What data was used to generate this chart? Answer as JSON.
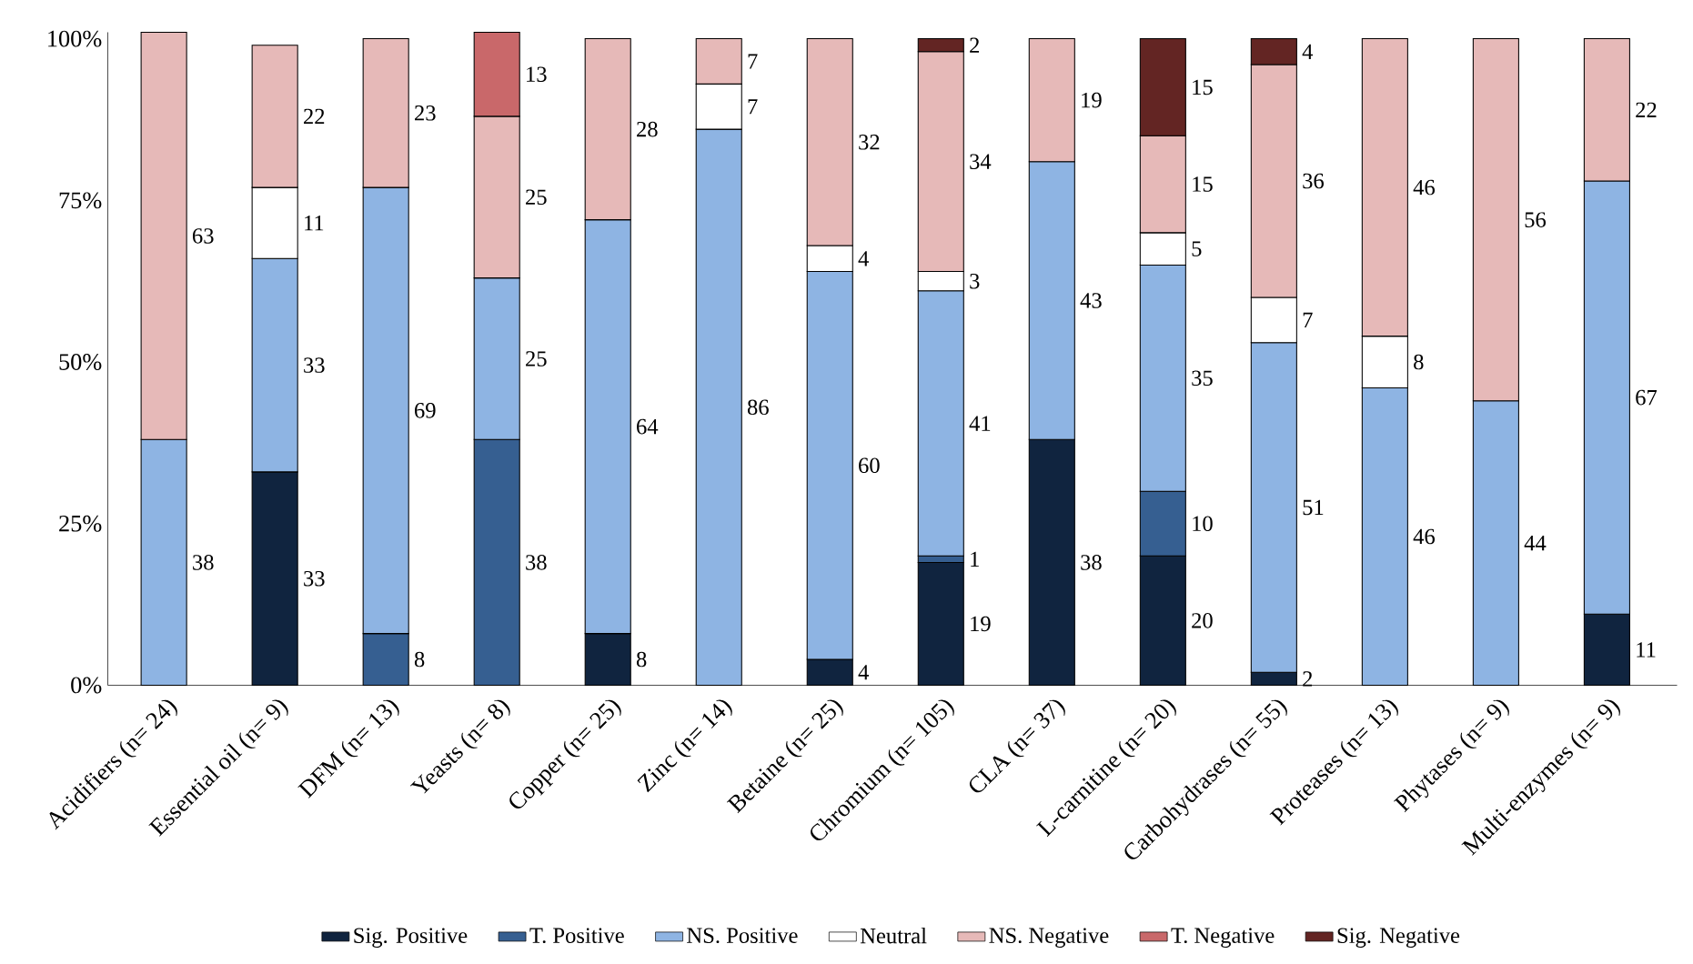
{
  "chart_data": {
    "type": "bar",
    "stacked": true,
    "categories": [
      "Acidifiers (n= 24)",
      "Essential oil (n= 9)",
      "DFM (n= 13)",
      "Yeasts (n= 8)",
      "Copper (n= 25)",
      "Zinc (n= 14)",
      "Betaine (n= 25)",
      "Chromium (n= 105)",
      "CLA (n= 37)",
      "L-carnitine (n= 20)",
      "Carbohydrases (n= 55)",
      "Proteases (n= 13)",
      "Phytases (n= 9)",
      "Multi-enzymes (n= 9)"
    ],
    "series": [
      {
        "name": "Sig. Positive",
        "color": "#10243f",
        "values": [
          null,
          33,
          null,
          null,
          8,
          null,
          4,
          19,
          38,
          20,
          2,
          null,
          null,
          11
        ]
      },
      {
        "name": "T. Positive",
        "color": "#365f91",
        "values": [
          null,
          null,
          8,
          38,
          null,
          null,
          null,
          1,
          null,
          10,
          null,
          null,
          null,
          null
        ]
      },
      {
        "name": "NS. Positive",
        "color": "#8eb4e3",
        "values": [
          38,
          33,
          69,
          25,
          64,
          86,
          60,
          41,
          43,
          35,
          51,
          46,
          44,
          67
        ]
      },
      {
        "name": "Neutral",
        "color": "#ffffff",
        "values": [
          null,
          11,
          null,
          null,
          null,
          7,
          4,
          3,
          null,
          5,
          7,
          8,
          null,
          null
        ]
      },
      {
        "name": "NS. Negative",
        "color": "#e6b9b8",
        "values": [
          63,
          22,
          23,
          25,
          28,
          7,
          32,
          34,
          19,
          15,
          36,
          46,
          56,
          22
        ]
      },
      {
        "name": "T. Negative",
        "color": "#c9686a",
        "values": [
          null,
          null,
          null,
          13,
          null,
          null,
          null,
          null,
          null,
          null,
          null,
          null,
          null,
          null
        ]
      },
      {
        "name": "Sig. Negative",
        "color": "#632523",
        "values": [
          null,
          null,
          null,
          null,
          null,
          null,
          null,
          2,
          null,
          15,
          4,
          null,
          null,
          null
        ]
      }
    ],
    "ylim": [
      0,
      101
    ],
    "yticks": [
      {
        "value": 0,
        "label": "0%"
      },
      {
        "value": 25,
        "label": "25%"
      },
      {
        "value": 50,
        "label": "50%"
      },
      {
        "value": 75,
        "label": "75%"
      },
      {
        "value": 100,
        "label": "100%"
      }
    ],
    "data_labels": true,
    "grid": false,
    "legend": "bottom"
  }
}
